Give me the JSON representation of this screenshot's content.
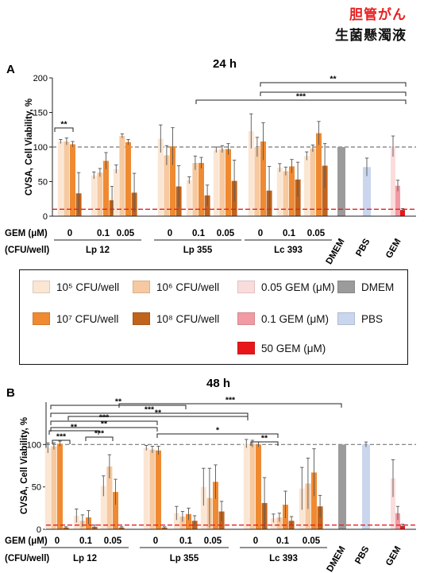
{
  "header": {
    "line1": "胆管がん",
    "line2": "生菌懸濁液"
  },
  "colors": {
    "c1e5": "#fbe6d4",
    "c1e6": "#f6c9a0",
    "c1e7": "#ef8a32",
    "c1e8": "#c0641d",
    "gem005": "#fbdcdc",
    "gem01": "#f29aa3",
    "gem50": "#e8161b",
    "dmem": "#9b9b9b",
    "pbs": "#c9d6ee",
    "ref100": "#777777",
    "ref10": "#e81e1e"
  },
  "legend": {
    "items": [
      {
        "label": "10⁵ CFU/well",
        "color": "#fbe6d4"
      },
      {
        "label": "10⁶ CFU/well",
        "color": "#f6c9a0"
      },
      {
        "label": "0.05 GEM (μM)",
        "color": "#fbdcdc"
      },
      {
        "label": "DMEM",
        "color": "#9b9b9b"
      },
      {
        "label": "10⁷ CFU/well",
        "color": "#ef8a32"
      },
      {
        "label": "10⁸ CFU/well",
        "color": "#c0641d"
      },
      {
        "label": "0.1 GEM (μM)",
        "color": "#f29aa3"
      },
      {
        "label": "PBS",
        "color": "#c9d6ee"
      },
      {
        "label": "50 GEM (μM)",
        "color": "#e8161b"
      }
    ]
  },
  "chart_data": [
    {
      "panel": "A",
      "title": "24 h",
      "type": "bar",
      "ylabel": "CVSA, Cell Viability, %",
      "ylim": [
        0,
        200
      ],
      "yticks": [
        "0",
        "50",
        "100",
        "150",
        "200"
      ],
      "reference_lines": [
        100,
        10
      ],
      "row_labels": [
        "GEM (μM)",
        "(CFU/well)"
      ],
      "strains": [
        "Lp 12",
        "Lp 355",
        "Lc 393"
      ],
      "gem_levels": [
        "0",
        "0.1",
        "0.05"
      ],
      "control_labels": [
        "DMEM",
        "PBS",
        "GEM"
      ],
      "groups": [
        {
          "strain": "Lp 12",
          "gem": "0",
          "values": [
            108,
            108,
            104,
            33
          ],
          "err": [
            3,
            5,
            4,
            30
          ]
        },
        {
          "strain": "Lp 12",
          "gem": "0.1",
          "values": [
            59,
            63,
            80,
            23
          ],
          "err": [
            5,
            6,
            12,
            20
          ]
        },
        {
          "strain": "Lp 12",
          "gem": "0.05",
          "values": [
            68,
            116,
            107,
            34
          ],
          "err": [
            6,
            3,
            4,
            28
          ]
        },
        {
          "strain": "Lp 355",
          "gem": "0",
          "values": [
            112,
            88,
            101,
            43
          ],
          "err": [
            20,
            14,
            27,
            30
          ]
        },
        {
          "strain": "Lp 355",
          "gem": "0.1",
          "values": [
            52,
            77,
            77,
            30
          ],
          "err": [
            5,
            10,
            8,
            15
          ]
        },
        {
          "strain": "Lp 355",
          "gem": "0.05",
          "values": [
            96,
            97,
            97,
            51
          ],
          "err": [
            4,
            5,
            8,
            30
          ]
        },
        {
          "strain": "Lc 393",
          "gem": "0",
          "values": [
            123,
            100,
            108,
            37
          ],
          "err": [
            25,
            14,
            27,
            35
          ]
        },
        {
          "strain": "Lc 393",
          "gem": "0.1",
          "values": [
            70,
            65,
            72,
            53
          ],
          "err": [
            6,
            6,
            10,
            25
          ]
        },
        {
          "strain": "Lc 393",
          "gem": "0.05",
          "values": [
            87,
            98,
            120,
            73
          ],
          "err": [
            6,
            5,
            17,
            32
          ]
        }
      ],
      "controls": [
        {
          "name": "DMEM",
          "value": 100,
          "err": 0
        },
        {
          "name": "PBS",
          "value": 71,
          "err": 13
        },
        {
          "name": "GEM 0.05",
          "value": 101,
          "err": 15
        },
        {
          "name": "GEM 0.1",
          "value": 44,
          "err": 8
        },
        {
          "name": "GEM 50",
          "value": 9,
          "err": 2
        }
      ],
      "significance": [
        "**",
        "**",
        "***"
      ]
    },
    {
      "panel": "B",
      "title": "48 h",
      "type": "bar",
      "ylabel": "CVSA, Cell Viability, %",
      "ylim": [
        0,
        150
      ],
      "yticks": [
        "0",
        "50",
        "100"
      ],
      "reference_lines": [
        100,
        5
      ],
      "row_labels": [
        "GEM (μM)",
        "(CFU/well)"
      ],
      "strains": [
        "Lp 12",
        "Lp 355",
        "Lc 393"
      ],
      "gem_levels": [
        "0",
        "0.1",
        "0.05"
      ],
      "control_labels": [
        "DMEM",
        "PBS",
        "GEM"
      ],
      "groups": [
        {
          "strain": "Lp 12",
          "gem": "0",
          "values": [
            96,
            98,
            101,
            2
          ],
          "err": [
            6,
            4,
            3,
            1
          ]
        },
        {
          "strain": "Lp 12",
          "gem": "0.1",
          "values": [
            16,
            10,
            14,
            3
          ],
          "err": [
            8,
            7,
            8,
            2
          ]
        },
        {
          "strain": "Lp 12",
          "gem": "0.05",
          "values": [
            51,
            74,
            44,
            2
          ],
          "err": [
            12,
            14,
            15,
            1
          ]
        },
        {
          "strain": "Lp 355",
          "gem": "0",
          "values": [
            96,
            94,
            93,
            2
          ],
          "err": [
            3,
            4,
            5,
            1
          ]
        },
        {
          "strain": "Lp 355",
          "gem": "0.1",
          "values": [
            19,
            15,
            18,
            10
          ],
          "err": [
            8,
            6,
            7,
            6
          ]
        },
        {
          "strain": "Lp 355",
          "gem": "0.05",
          "values": [
            50,
            37,
            56,
            21
          ],
          "err": [
            22,
            35,
            20,
            12
          ]
        },
        {
          "strain": "Lc 393",
          "gem": "0",
          "values": [
            101,
            101,
            100,
            31
          ],
          "err": [
            5,
            4,
            3,
            30
          ]
        },
        {
          "strain": "Lc 393",
          "gem": "0.1",
          "values": [
            13,
            14,
            29,
            10
          ],
          "err": [
            5,
            5,
            16,
            5
          ]
        },
        {
          "strain": "Lc 393",
          "gem": "0.05",
          "values": [
            48,
            54,
            67,
            27
          ],
          "err": [
            25,
            30,
            28,
            13
          ]
        }
      ],
      "controls": [
        {
          "name": "DMEM",
          "value": 100,
          "err": 0
        },
        {
          "name": "PBS",
          "value": 100,
          "err": 3
        },
        {
          "name": "GEM 0.05",
          "value": 60,
          "err": 22
        },
        {
          "name": "GEM 0.1",
          "value": 19,
          "err": 8
        },
        {
          "name": "GEM 50",
          "value": 4,
          "err": 2
        }
      ],
      "significance": [
        "***",
        "**",
        "***",
        "***",
        "**",
        "***",
        "**",
        "*",
        "**",
        "***",
        "**"
      ]
    }
  ]
}
